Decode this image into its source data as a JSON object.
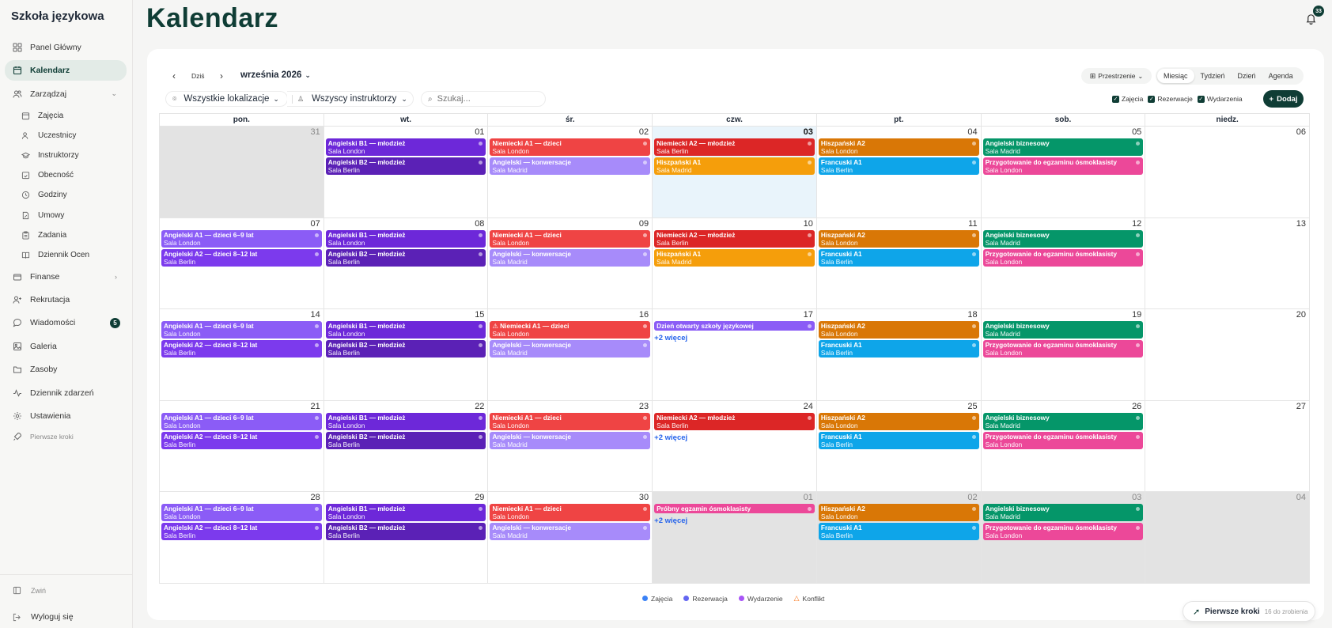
{
  "sidebar": {
    "brand": "Szkoła językowa",
    "panel": "Panel Główny",
    "kalendarz": "Kalendarz",
    "zarzadzaj": "Zarządzaj",
    "sub": [
      "Zajęcia",
      "Uczestnicy",
      "Instruktorzy",
      "Obecność",
      "Godziny",
      "Umowy",
      "Zadania",
      "Dziennik Ocen"
    ],
    "finanse": "Finanse",
    "rekrutacja": "Rekrutacja",
    "wiadomosci": "Wiadomości",
    "wiadomosci_badge": "5",
    "galeria": "Galeria",
    "zasoby": "Zasoby",
    "dziennik_zdarzen": "Dziennik zdarzeń",
    "ustawienia": "Ustawienia",
    "pierwsze_kroki": "Pierwsze kroki",
    "zwin": "Zwiń",
    "wyloguj": "Wyloguj się"
  },
  "header": {
    "title": "Kalendarz",
    "notifications": "33"
  },
  "toolbar": {
    "today": "Dziś",
    "month": "września 2026",
    "locations": "Wszystkie lokalizacje",
    "instructors": "Wszyscy instruktorzy",
    "search_placeholder": "Szukaj...",
    "spaces": "Przestrzenie",
    "views": [
      "Miesiąc",
      "Tydzień",
      "Dzień",
      "Agenda"
    ],
    "filters": [
      "Zajęcia",
      "Rezerwacje",
      "Wydarzenia"
    ],
    "add": "Dodaj"
  },
  "weekdays": [
    "pon.",
    "wt.",
    "śr.",
    "czw.",
    "pt.",
    "sob.",
    "niedz."
  ],
  "colors": {
    "ang_kids_a": "#8b5cf6",
    "ang_kids_b": "#7c3aed",
    "ang_b1": "#6d28d9",
    "ang_b2": "#5b21b6",
    "niem_a1": "#ef4444",
    "niem_a2": "#dc2626",
    "konw": "#a78bfa",
    "hisz_a1": "#f59e0b",
    "hisz_a2": "#d97706",
    "fr": "#0ea5e9",
    "biz": "#059669",
    "exam": "#ec4899",
    "open": "#8b5cf6",
    "trial": "#ec4899"
  },
  "weeks": [
    {
      "days": [
        {
          "n": "31",
          "out": true,
          "events": []
        },
        {
          "n": "01",
          "events": [
            {
              "t": "Angielski B1 — młodzież",
              "s": "Sala London",
              "c": "ang_b1"
            },
            {
              "t": "Angielski B2 — młodzież",
              "s": "Sala Berlin",
              "c": "ang_b2"
            }
          ]
        },
        {
          "n": "02",
          "events": [
            {
              "t": "Niemiecki A1 — dzieci",
              "s": "Sala London",
              "c": "niem_a1"
            },
            {
              "t": "Angielski — konwersacje",
              "s": "Sala Madrid",
              "c": "konw"
            }
          ]
        },
        {
          "n": "03",
          "today": true,
          "events": [
            {
              "t": "Niemiecki A2 — młodzież",
              "s": "Sala Berlin",
              "c": "niem_a2"
            },
            {
              "t": "Hiszpański A1",
              "s": "Sala Madrid",
              "c": "hisz_a1"
            }
          ]
        },
        {
          "n": "04",
          "events": [
            {
              "t": "Hiszpański A2",
              "s": "Sala London",
              "c": "hisz_a2"
            },
            {
              "t": "Francuski A1",
              "s": "Sala Berlin",
              "c": "fr"
            }
          ]
        },
        {
          "n": "05",
          "events": [
            {
              "t": "Angielski biznesowy",
              "s": "Sala Madrid",
              "c": "biz"
            },
            {
              "t": "Przygotowanie do egzaminu ósmoklasisty",
              "s": "Sala London",
              "c": "exam"
            }
          ]
        },
        {
          "n": "06",
          "events": []
        }
      ]
    },
    {
      "days": [
        {
          "n": "07",
          "events": [
            {
              "t": "Angielski A1 — dzieci 6–9 lat",
              "s": "Sala London",
              "c": "ang_kids_a"
            },
            {
              "t": "Angielski A2 — dzieci 8–12 lat",
              "s": "Sala Berlin",
              "c": "ang_kids_b"
            }
          ]
        },
        {
          "n": "08",
          "events": [
            {
              "t": "Angielski B1 — młodzież",
              "s": "Sala London",
              "c": "ang_b1"
            },
            {
              "t": "Angielski B2 — młodzież",
              "s": "Sala Berlin",
              "c": "ang_b2"
            }
          ]
        },
        {
          "n": "09",
          "events": [
            {
              "t": "Niemiecki A1 — dzieci",
              "s": "Sala London",
              "c": "niem_a1"
            },
            {
              "t": "Angielski — konwersacje",
              "s": "Sala Madrid",
              "c": "konw"
            }
          ]
        },
        {
          "n": "10",
          "events": [
            {
              "t": "Niemiecki A2 — młodzież",
              "s": "Sala Berlin",
              "c": "niem_a2"
            },
            {
              "t": "Hiszpański A1",
              "s": "Sala Madrid",
              "c": "hisz_a1"
            }
          ]
        },
        {
          "n": "11",
          "events": [
            {
              "t": "Hiszpański A2",
              "s": "Sala London",
              "c": "hisz_a2"
            },
            {
              "t": "Francuski A1",
              "s": "Sala Berlin",
              "c": "fr"
            }
          ]
        },
        {
          "n": "12",
          "events": [
            {
              "t": "Angielski biznesowy",
              "s": "Sala Madrid",
              "c": "biz"
            },
            {
              "t": "Przygotowanie do egzaminu ósmoklasisty",
              "s": "Sala London",
              "c": "exam"
            }
          ]
        },
        {
          "n": "13",
          "events": []
        }
      ]
    },
    {
      "days": [
        {
          "n": "14",
          "events": [
            {
              "t": "Angielski A1 — dzieci 6–9 lat",
              "s": "Sala London",
              "c": "ang_kids_a"
            },
            {
              "t": "Angielski A2 — dzieci 8–12 lat",
              "s": "Sala Berlin",
              "c": "ang_kids_b"
            }
          ]
        },
        {
          "n": "15",
          "events": [
            {
              "t": "Angielski B1 — młodzież",
              "s": "Sala London",
              "c": "ang_b1"
            },
            {
              "t": "Angielski B2 — młodzież",
              "s": "Sala Berlin",
              "c": "ang_b2"
            }
          ]
        },
        {
          "n": "16",
          "events": [
            {
              "t": "⚠ Niemiecki A1 — dzieci",
              "s": "Sala London",
              "c": "niem_a1"
            },
            {
              "t": "Angielski — konwersacje",
              "s": "Sala Madrid",
              "c": "konw"
            }
          ]
        },
        {
          "n": "17",
          "more": "+2 więcej",
          "events": [
            {
              "t": "Dzień otwarty szkoły językowej",
              "s": "",
              "c": "open",
              "single": true
            }
          ]
        },
        {
          "n": "18",
          "events": [
            {
              "t": "Hiszpański A2",
              "s": "Sala London",
              "c": "hisz_a2"
            },
            {
              "t": "Francuski A1",
              "s": "Sala Berlin",
              "c": "fr"
            }
          ]
        },
        {
          "n": "19",
          "events": [
            {
              "t": "Angielski biznesowy",
              "s": "Sala Madrid",
              "c": "biz"
            },
            {
              "t": "Przygotowanie do egzaminu ósmoklasisty",
              "s": "Sala London",
              "c": "exam"
            }
          ]
        },
        {
          "n": "20",
          "events": []
        }
      ]
    },
    {
      "days": [
        {
          "n": "21",
          "events": [
            {
              "t": "Angielski A1 — dzieci 6–9 lat",
              "s": "Sala London",
              "c": "ang_kids_a"
            },
            {
              "t": "Angielski A2 — dzieci 8–12 lat",
              "s": "Sala Berlin",
              "c": "ang_kids_b"
            }
          ]
        },
        {
          "n": "22",
          "events": [
            {
              "t": "Angielski B1 — młodzież",
              "s": "Sala London",
              "c": "ang_b1"
            },
            {
              "t": "Angielski B2 — młodzież",
              "s": "Sala Berlin",
              "c": "ang_b2"
            }
          ]
        },
        {
          "n": "23",
          "events": [
            {
              "t": "Niemiecki A1 — dzieci",
              "s": "Sala London",
              "c": "niem_a1"
            },
            {
              "t": "Angielski — konwersacje",
              "s": "Sala Madrid",
              "c": "konw"
            }
          ]
        },
        {
          "n": "24",
          "more": "+2 więcej",
          "events": [
            {
              "t": "Niemiecki A2 — młodzież",
              "s": "Sala Berlin",
              "c": "niem_a2"
            }
          ]
        },
        {
          "n": "25",
          "events": [
            {
              "t": "Hiszpański A2",
              "s": "Sala London",
              "c": "hisz_a2"
            },
            {
              "t": "Francuski A1",
              "s": "Sala Berlin",
              "c": "fr"
            }
          ]
        },
        {
          "n": "26",
          "events": [
            {
              "t": "Angielski biznesowy",
              "s": "Sala Madrid",
              "c": "biz"
            },
            {
              "t": "Przygotowanie do egzaminu ósmoklasisty",
              "s": "Sala London",
              "c": "exam"
            }
          ]
        },
        {
          "n": "27",
          "events": []
        }
      ]
    },
    {
      "days": [
        {
          "n": "28",
          "events": [
            {
              "t": "Angielski A1 — dzieci 6–9 lat",
              "s": "Sala London",
              "c": "ang_kids_a"
            },
            {
              "t": "Angielski A2 — dzieci 8–12 lat",
              "s": "Sala Berlin",
              "c": "ang_kids_b"
            }
          ]
        },
        {
          "n": "29",
          "events": [
            {
              "t": "Angielski B1 — młodzież",
              "s": "Sala London",
              "c": "ang_b1"
            },
            {
              "t": "Angielski B2 — młodzież",
              "s": "Sala Berlin",
              "c": "ang_b2"
            }
          ]
        },
        {
          "n": "30",
          "events": [
            {
              "t": "Niemiecki A1 — dzieci",
              "s": "Sala London",
              "c": "niem_a1"
            },
            {
              "t": "Angielski — konwersacje",
              "s": "Sala Madrid",
              "c": "konw"
            }
          ]
        },
        {
          "n": "01",
          "out": true,
          "more": "+2 więcej",
          "events": [
            {
              "t": "Próbny egzamin ósmoklasisty",
              "s": "",
              "c": "trial",
              "single": true
            }
          ]
        },
        {
          "n": "02",
          "out": true,
          "events": [
            {
              "t": "Hiszpański A2",
              "s": "Sala London",
              "c": "hisz_a2"
            },
            {
              "t": "Francuski A1",
              "s": "Sala Berlin",
              "c": "fr"
            }
          ]
        },
        {
          "n": "03",
          "out": true,
          "events": [
            {
              "t": "Angielski biznesowy",
              "s": "Sala Madrid",
              "c": "biz"
            },
            {
              "t": "Przygotowanie do egzaminu ósmoklasisty",
              "s": "Sala London",
              "c": "exam"
            }
          ]
        },
        {
          "n": "04",
          "out": true,
          "events": []
        }
      ]
    }
  ],
  "legend": [
    {
      "label": "Zajęcia",
      "color": "#3b82f6"
    },
    {
      "label": "Rezerwacja",
      "color": "#6366f1"
    },
    {
      "label": "Wydarzenie",
      "color": "#a855f7"
    },
    {
      "label": "Konflikt",
      "color": "#f97316"
    }
  ],
  "first_steps": {
    "label": "Pierwsze kroki",
    "sub": "16 do zrobienia"
  }
}
